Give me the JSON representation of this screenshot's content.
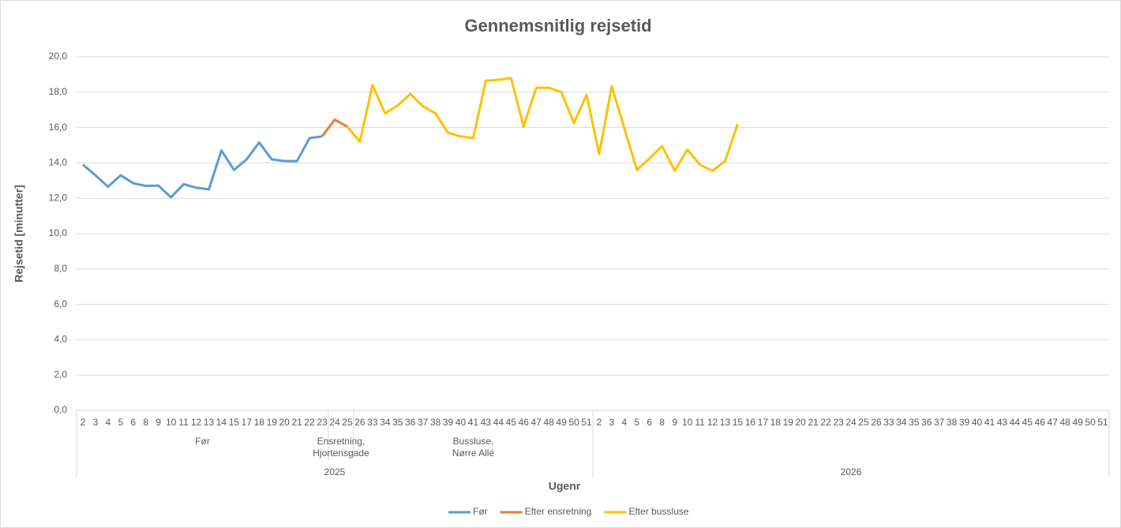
{
  "chart_data": {
    "type": "line",
    "title": "Gennemsnitlig rejsetid",
    "y_label": "Rejsetid [minutter]",
    "x_label": "Ugenr",
    "categories": [
      "2",
      "3",
      "4",
      "5",
      "6",
      "8",
      "9",
      "10",
      "11",
      "12",
      "13",
      "14",
      "15",
      "17",
      "18",
      "19",
      "20",
      "21",
      "22",
      "23",
      "24",
      "25",
      "26",
      "33",
      "34",
      "35",
      "36",
      "37",
      "38",
      "39",
      "40",
      "41",
      "43",
      "44",
      "45",
      "46",
      "47",
      "48",
      "49",
      "50",
      "51",
      "2",
      "3",
      "4",
      "5",
      "6",
      "8",
      "9",
      "10",
      "11",
      "12",
      "13",
      "15",
      "16",
      "17",
      "18",
      "19",
      "20",
      "21",
      "22",
      "23",
      "24",
      "25",
      "26",
      "33",
      "34",
      "35",
      "36",
      "37",
      "38",
      "39",
      "40",
      "41",
      "43",
      "44",
      "45",
      "46",
      "47",
      "48",
      "49",
      "50",
      "51"
    ],
    "groups": [
      {
        "label": "Før",
        "span": 20
      },
      {
        "label": "Ensretning,\nHjortensgade",
        "span": 2
      },
      {
        "label": "Bussluse,\nNørre Allé",
        "span": 19
      },
      {
        "label": null,
        "span": 41
      }
    ],
    "years": [
      {
        "label": "2025",
        "span": 41
      },
      {
        "label": "2026",
        "span": 41
      }
    ],
    "series": [
      {
        "name": "Før",
        "color": "#5b9bd5",
        "values": [
          13.9,
          13.3,
          12.65,
          13.3,
          12.85,
          12.7,
          12.72,
          12.05,
          12.8,
          12.6,
          12.5,
          14.7,
          13.6,
          14.2,
          15.15,
          14.2,
          14.1,
          14.1,
          15.4,
          15.5,
          null,
          null,
          null,
          null,
          null,
          null,
          null,
          null,
          null,
          null,
          null,
          null,
          null,
          null,
          null,
          null,
          null,
          null,
          null,
          null,
          null,
          null,
          null,
          null,
          null,
          null,
          null,
          null,
          null,
          null,
          null,
          null,
          null,
          null,
          null,
          null,
          null,
          null,
          null,
          null,
          null,
          null,
          null,
          null,
          null,
          null,
          null,
          null,
          null,
          null,
          null,
          null,
          null,
          null,
          null,
          null,
          null,
          null,
          null,
          null,
          null,
          null
        ]
      },
      {
        "name": "Efter ensretning",
        "color": "#ed7d31",
        "values": [
          null,
          null,
          null,
          null,
          null,
          null,
          null,
          null,
          null,
          null,
          null,
          null,
          null,
          null,
          null,
          null,
          null,
          null,
          null,
          15.5,
          16.45,
          16.05,
          null,
          null,
          null,
          null,
          null,
          null,
          null,
          null,
          null,
          null,
          null,
          null,
          null,
          null,
          null,
          null,
          null,
          null,
          null,
          null,
          null,
          null,
          null,
          null,
          null,
          null,
          null,
          null,
          null,
          null,
          null,
          null,
          null,
          null,
          null,
          null,
          null,
          null,
          null,
          null,
          null,
          null,
          null,
          null,
          null,
          null,
          null,
          null,
          null,
          null,
          null,
          null,
          null,
          null,
          null,
          null,
          null,
          null,
          null,
          null
        ]
      },
      {
        "name": "Efter bussluse",
        "color": "#ffc000",
        "values": [
          null,
          null,
          null,
          null,
          null,
          null,
          null,
          null,
          null,
          null,
          null,
          null,
          null,
          null,
          null,
          null,
          null,
          null,
          null,
          null,
          null,
          16.05,
          15.2,
          18.4,
          16.8,
          17.25,
          17.9,
          17.2,
          16.8,
          15.7,
          15.5,
          15.4,
          18.65,
          18.7,
          18.8,
          16.05,
          18.25,
          18.25,
          18.0,
          16.25,
          17.85,
          14.5,
          18.35,
          15.95,
          13.6,
          14.25,
          14.95,
          13.55,
          14.75,
          13.9,
          13.55,
          14.1,
          16.2,
          null,
          null,
          null,
          null,
          null,
          null,
          null,
          null,
          null,
          null,
          null,
          null,
          null,
          null,
          null,
          null,
          null,
          null,
          null,
          null,
          null,
          null,
          null,
          null,
          null,
          null,
          null,
          null,
          null
        ]
      }
    ],
    "ylim": [
      0,
      20
    ],
    "yticks": [
      {
        "value": 0,
        "label": "0,0"
      },
      {
        "value": 2,
        "label": "2,0"
      },
      {
        "value": 4,
        "label": "4,0"
      },
      {
        "value": 6,
        "label": "6,0"
      },
      {
        "value": 8,
        "label": "8,0"
      },
      {
        "value": 10,
        "label": "10,0"
      },
      {
        "value": 12,
        "label": "12,0"
      },
      {
        "value": 14,
        "label": "14,0"
      },
      {
        "value": 16,
        "label": "16,0"
      },
      {
        "value": 18,
        "label": "18,0"
      },
      {
        "value": 20,
        "label": "20,0"
      }
    ],
    "grid": true,
    "legend": "bottom"
  }
}
